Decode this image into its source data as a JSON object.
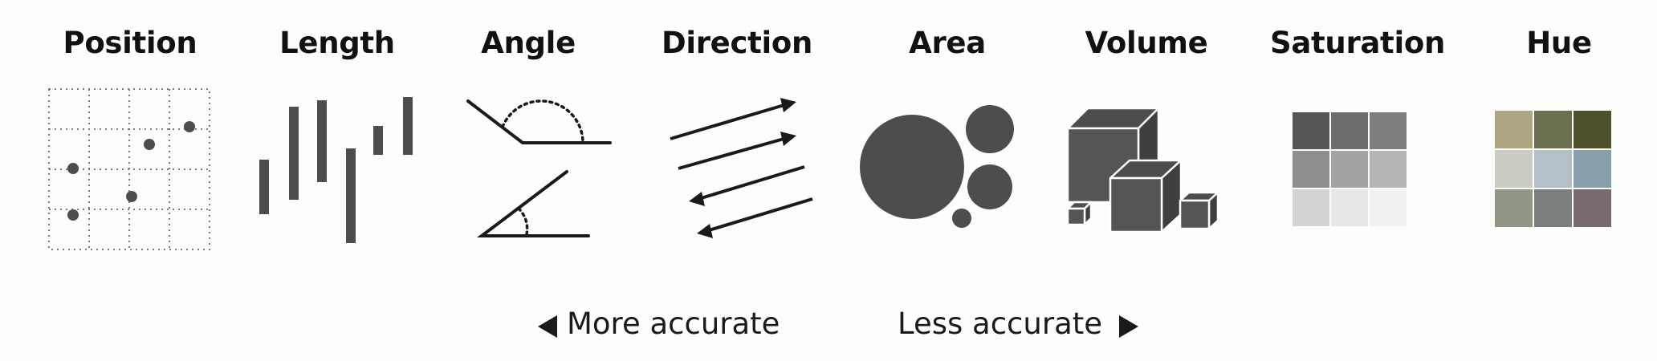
{
  "channels": [
    {
      "key": "position",
      "label": "Position"
    },
    {
      "key": "length",
      "label": "Length"
    },
    {
      "key": "angle",
      "label": "Angle"
    },
    {
      "key": "direction",
      "label": "Direction"
    },
    {
      "key": "area",
      "label": "Area"
    },
    {
      "key": "volume",
      "label": "Volume"
    },
    {
      "key": "saturation",
      "label": "Saturation"
    },
    {
      "key": "hue",
      "label": "Hue"
    }
  ],
  "legend": {
    "left_label": "More accurate",
    "right_label": "Less accurate"
  },
  "colors": {
    "ink": "#4d4d4d",
    "saturation_grid": [
      "#555555",
      "#6d6d6d",
      "#7e7e7e",
      "#8f8f8f",
      "#a3a3a3",
      "#b5b5b5",
      "#d3d3d3",
      "#e6e6e6",
      "#f1f1f1"
    ],
    "hue_grid": [
      "#ada684",
      "#6c6f4f",
      "#4d502b",
      "#c9cdc4",
      "#b3c0c8",
      "#86a0ab",
      "#8e9585",
      "#7b7e7f",
      "#776a70"
    ]
  }
}
